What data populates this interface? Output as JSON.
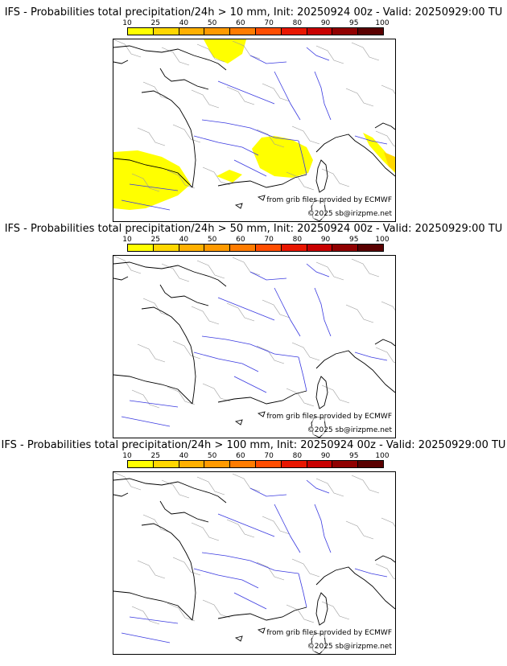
{
  "scale": {
    "labels": [
      "10",
      "25",
      "40",
      "50",
      "60",
      "70",
      "80",
      "90",
      "95",
      "100"
    ],
    "colors": [
      "#ffff00",
      "#ffd700",
      "#ffb000",
      "#ff9a00",
      "#ff7c00",
      "#ff4d00",
      "#e81600",
      "#c80000",
      "#900000",
      "#5a0000"
    ]
  },
  "panels": [
    {
      "title": "IFS - Probabilities total precipitation/24h > 10 mm, Init: 20250924 00z - Valid: 20250929:00 TU",
      "has_precip": true
    },
    {
      "title": "IFS - Probabilities total precipitation/24h > 50 mm, Init: 20250924 00z - Valid: 20250929:00 TU",
      "has_precip": false
    },
    {
      "title": "IFS - Probabilities total precipitation/24h > 100 mm, Init: 20250924 00z - Valid: 20250929:00 TU",
      "has_precip": false
    }
  ],
  "credits": {
    "source": "from grib files provided by ECMWF",
    "copyright": "©2025 sb@irizpme.net"
  },
  "colors": {
    "coast": "#000000",
    "rivers": "#3a3ae0",
    "borders": "#9a9a9a",
    "precip": "#ffff00"
  }
}
